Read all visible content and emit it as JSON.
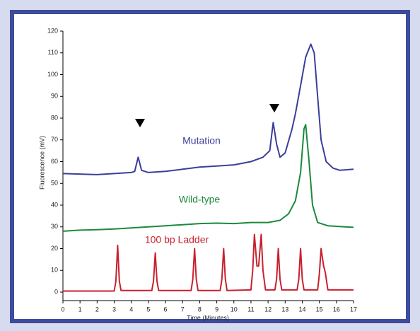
{
  "chart_data": {
    "type": "line",
    "xlabel": "Time (Minutes)",
    "ylabel": "Fluorescence (mV)",
    "xlim": [
      0,
      17
    ],
    "xticks": [
      0,
      1,
      2,
      3,
      4,
      5,
      6,
      7,
      8,
      9,
      10,
      11,
      12,
      13,
      14,
      15,
      16,
      17
    ],
    "ylim": [
      0,
      120
    ],
    "yticks": [
      0,
      10,
      20,
      30,
      40,
      50,
      60,
      70,
      80,
      90,
      100,
      110,
      120
    ],
    "series": [
      {
        "name": "Mutation",
        "color": "#3b3f99",
        "x": [
          0,
          2,
          3,
          4,
          4.2,
          4.4,
          4.6,
          5,
          6,
          7,
          8,
          9,
          10,
          11,
          11.7,
          12.1,
          12.3,
          12.5,
          12.7,
          13,
          13.4,
          13.6,
          13.9,
          14.2,
          14.5,
          14.7,
          14.9,
          15.1,
          15.4,
          15.8,
          16.2,
          17
        ],
        "values": [
          54.5,
          54,
          54.5,
          55,
          55.5,
          62,
          56,
          55,
          55.5,
          56.5,
          57.5,
          58,
          58.5,
          60,
          62,
          65,
          78,
          68,
          62,
          64,
          75,
          82,
          95,
          108,
          114,
          110,
          90,
          70,
          60,
          57,
          56,
          56.5
        ]
      },
      {
        "name": "Wild-type",
        "color": "#1b8a3c",
        "x": [
          0,
          1,
          2,
          3,
          4,
          5,
          6,
          7,
          8,
          9,
          10,
          11,
          12,
          12.7,
          13.2,
          13.6,
          13.9,
          14.1,
          14.2,
          14.4,
          14.6,
          14.9,
          15.5,
          16.5,
          17
        ],
        "values": [
          28,
          28.5,
          28.7,
          29,
          29.5,
          30,
          30.5,
          31,
          31.5,
          31.7,
          31.5,
          32,
          32,
          33,
          36,
          42,
          55,
          75,
          77,
          60,
          40,
          32,
          30.5,
          30,
          29.8
        ]
      },
      {
        "name": "100 bp Ladder",
        "color": "#c9202e",
        "x": [
          0,
          3.0,
          3.1,
          3.2,
          3.3,
          3.4,
          5.2,
          5.3,
          5.4,
          5.5,
          5.6,
          7.5,
          7.6,
          7.7,
          7.8,
          7.9,
          9.2,
          9.3,
          9.4,
          9.5,
          9.6,
          11.0,
          11.1,
          11.2,
          11.35,
          11.45,
          11.6,
          11.7,
          11.85,
          12.4,
          12.5,
          12.6,
          12.7,
          12.8,
          13.7,
          13.8,
          13.9,
          14.0,
          14.1,
          14.9,
          15.0,
          15.1,
          15.25,
          15.35,
          15.5,
          17
        ],
        "values": [
          0.5,
          0.5,
          5,
          21.5,
          5,
          0.7,
          0.7,
          5,
          18,
          5,
          0.7,
          0.7,
          6,
          20,
          6,
          0.7,
          0.7,
          6,
          20,
          6,
          0.7,
          1,
          10,
          26.5,
          12,
          12,
          26.5,
          10,
          1,
          1,
          6,
          20,
          6,
          1,
          1,
          6,
          20,
          6,
          1,
          1,
          8,
          20,
          12,
          9,
          1,
          1
        ]
      }
    ]
  }
}
